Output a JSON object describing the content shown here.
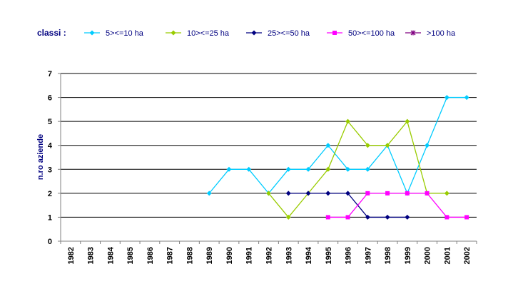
{
  "chart_data": {
    "type": "line",
    "title": "",
    "legend_title": "classi :",
    "ylabel": "n.ro aziende",
    "xlabel": "",
    "ylim": [
      0,
      7
    ],
    "yticks": [
      "0",
      "1",
      "2",
      "3",
      "4",
      "5",
      "6",
      "7"
    ],
    "categories": [
      "1982",
      "1983",
      "1984",
      "1985",
      "1986",
      "1987",
      "1988",
      "1989",
      "1990",
      "1991",
      "1992",
      "1993",
      "1994",
      "1995",
      "1996",
      "1997",
      "1998",
      "1999",
      "2000",
      "2001",
      "2002"
    ],
    "grid": true,
    "legend_position": "top",
    "series": [
      {
        "name": "5><=10 ha",
        "color": "#00CCFF",
        "marker": "diamond",
        "values": [
          null,
          null,
          null,
          null,
          null,
          null,
          null,
          2,
          3,
          3,
          2,
          3,
          3,
          4,
          3,
          3,
          4,
          2,
          4,
          6,
          6
        ]
      },
      {
        "name": "10><=25 ha",
        "color": "#99CC00",
        "marker": "diamond",
        "values": [
          null,
          null,
          null,
          null,
          null,
          null,
          null,
          null,
          null,
          null,
          2,
          1,
          2,
          3,
          5,
          4,
          4,
          5,
          2,
          2,
          null
        ]
      },
      {
        "name": "25><=50 ha",
        "color": "#000080",
        "marker": "diamond",
        "values": [
          null,
          null,
          null,
          null,
          null,
          null,
          null,
          null,
          null,
          null,
          null,
          2,
          2,
          2,
          2,
          1,
          1,
          1,
          null,
          null,
          null
        ]
      },
      {
        "name": "50><=100 ha",
        "color": "#FF00FF",
        "marker": "square",
        "values": [
          null,
          null,
          null,
          null,
          null,
          null,
          null,
          null,
          null,
          null,
          null,
          null,
          null,
          1,
          1,
          2,
          2,
          2,
          2,
          1,
          1
        ]
      },
      {
        "name": ">100 ha",
        "color": "#800080",
        "marker": "star",
        "values": [
          null,
          null,
          null,
          null,
          null,
          null,
          null,
          null,
          null,
          null,
          null,
          null,
          null,
          null,
          null,
          null,
          null,
          null,
          null,
          null,
          null
        ]
      }
    ]
  }
}
